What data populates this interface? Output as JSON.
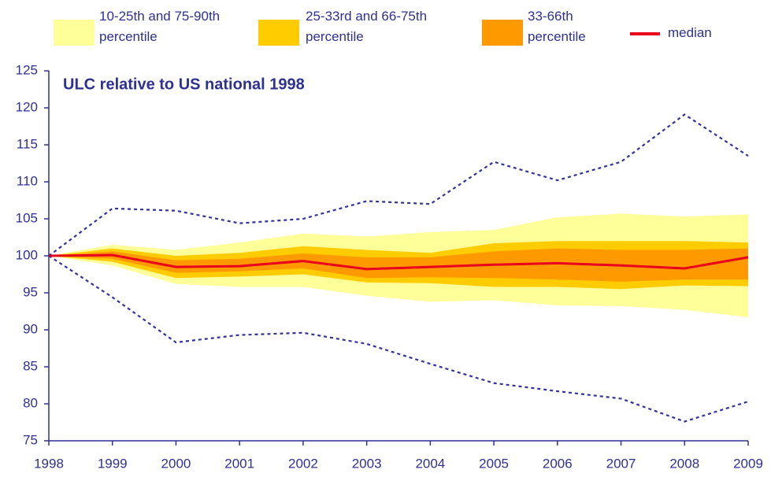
{
  "chart_data": {
    "type": "fan",
    "title": "ULC relative to US national 1998",
    "x": [
      1998,
      1999,
      2000,
      2001,
      2002,
      2003,
      2004,
      2005,
      2006,
      2007,
      2008,
      2009
    ],
    "xlim": [
      1998,
      2009
    ],
    "xticks": [
      1998,
      1999,
      2000,
      2001,
      2002,
      2003,
      2004,
      2005,
      2006,
      2007,
      2008,
      2009
    ],
    "ylim": [
      75,
      125
    ],
    "yticks": [
      75,
      80,
      85,
      90,
      95,
      100,
      105,
      110,
      115,
      120,
      125
    ],
    "bands": [
      {
        "name": "10-25th and 75-90th percentile",
        "color": "#ffff99",
        "upper": [
          100,
          101.5,
          100.8,
          101.8,
          103,
          102.6,
          103.2,
          103.5,
          105.2,
          105.7,
          105.3,
          105.6
        ],
        "lower": [
          100,
          98.7,
          96.2,
          95.8,
          95.8,
          94.6,
          93.8,
          94,
          93.3,
          93.2,
          92.7,
          91.7
        ]
      },
      {
        "name": "25-33rd and 66-75th percentile",
        "color": "#ffcc00",
        "upper": [
          100,
          101,
          100,
          100.4,
          101.3,
          100.8,
          100.4,
          101.7,
          102,
          102,
          102,
          101.8
        ],
        "lower": [
          100,
          99.2,
          97,
          97.2,
          97.5,
          96.4,
          96.3,
          95.8,
          95.8,
          95.5,
          96,
          95.9
        ]
      },
      {
        "name": "33-66th percentile",
        "color": "#ff9900",
        "upper": [
          100,
          100.6,
          99.4,
          99.6,
          100.3,
          99.8,
          99.8,
          100.6,
          101,
          100.8,
          100.8,
          101
        ],
        "lower": [
          100,
          99.6,
          97.7,
          97.9,
          98.3,
          97,
          97.1,
          97,
          96.8,
          96.5,
          96.8,
          96.8
        ]
      }
    ],
    "series": [
      {
        "name": "median",
        "color": "#e8001c",
        "values": [
          100,
          100.1,
          98.5,
          98.6,
          99.3,
          98.2,
          98.5,
          98.8,
          99.0,
          98.7,
          98.3,
          99.8
        ]
      }
    ],
    "bounds": {
      "color": "#333399",
      "upper": [
        100,
        106.4,
        106.1,
        104.4,
        105,
        107.4,
        107,
        112.7,
        110.2,
        112.7,
        119.1,
        113.5
      ],
      "lower": [
        100,
        94.4,
        88.3,
        89.3,
        89.6,
        88.1,
        85.4,
        82.8,
        81.7,
        80.7,
        77.6,
        80.3
      ]
    }
  }
}
